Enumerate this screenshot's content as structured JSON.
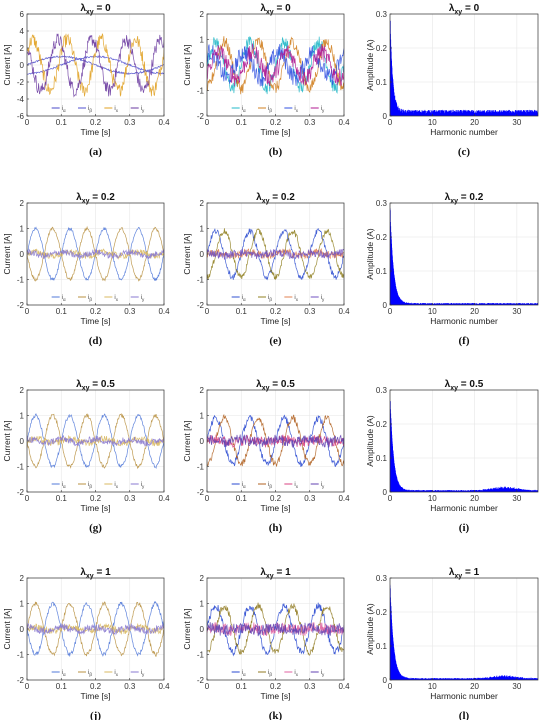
{
  "chart_data": [
    {
      "id": "a",
      "type": "line",
      "title": "λxy = 0",
      "title_main": "λ",
      "title_sub": "xy",
      "title_value": " = 0",
      "caption": "(a)",
      "xlabel": "Time [s]",
      "ylabel": "Current [A]",
      "xlim": [
        0,
        0.4
      ],
      "ylim": [
        -6,
        6
      ],
      "xticks": [
        0,
        0.1,
        0.2,
        0.3,
        0.4
      ],
      "xtick_labels": [
        "0",
        "0.1",
        "0.2",
        "0.3",
        "0.4"
      ],
      "yticks": [
        -6,
        -4,
        -2,
        0,
        2,
        4,
        6
      ],
      "ytick_labels": [
        "-6",
        "-4",
        "-2",
        "0",
        "2",
        "4",
        "6"
      ],
      "grid": true,
      "legend": [
        "iα",
        "iβ",
        "ix",
        "iy"
      ],
      "legend_main": [
        "i",
        "i",
        "i",
        "i"
      ],
      "legend_sub": [
        "α",
        "β",
        "x",
        "y"
      ],
      "legend_placement": "bottom-right",
      "colors": [
        "#4a4ac8",
        "#5050d0",
        "#e0a020",
        "#6a3aa0"
      ],
      "series": [
        {
          "amp": 1,
          "phase": 0,
          "noise": 0.1,
          "freq": 2.5
        },
        {
          "amp": 1,
          "phase": -1.57,
          "noise": 0.1,
          "freq": 2.5
        },
        {
          "amp": 3,
          "phase": 0.5,
          "noise": 0.8,
          "freq": 10
        },
        {
          "amp": 3,
          "phase": 2.2,
          "noise": 0.8,
          "freq": 10
        }
      ]
    },
    {
      "id": "b",
      "type": "line",
      "title": "λxy = 0",
      "title_main": "λ",
      "title_sub": "xy",
      "title_value": " = 0",
      "caption": "(b)",
      "xlabel": "Time [s]",
      "ylabel": "Current [A]",
      "xlim": [
        0,
        0.4
      ],
      "ylim": [
        -2,
        2
      ],
      "xticks": [
        0,
        0.1,
        0.2,
        0.3,
        0.4
      ],
      "xtick_labels": [
        "0",
        "0.1",
        "0.2",
        "0.3",
        "0.4"
      ],
      "yticks": [
        -2,
        -1,
        0,
        1,
        2
      ],
      "ytick_labels": [
        "-2",
        "-1",
        "0",
        "1",
        "2"
      ],
      "grid": true,
      "legend": [
        "iα",
        "iβ",
        "ix",
        "iy"
      ],
      "legend_main": [
        "i",
        "i",
        "i",
        "i"
      ],
      "legend_sub": [
        "α",
        "β",
        "x",
        "y"
      ],
      "legend_placement": "bottom-right",
      "colors": [
        "#20b8c8",
        "#d08020",
        "#3050e0",
        "#b01890"
      ],
      "series": [
        {
          "amp": 0.9,
          "phase": 0,
          "noise": 0.25,
          "freq": 10
        },
        {
          "amp": 0.9,
          "phase": -1.57,
          "noise": 0.25,
          "freq": 10
        },
        {
          "amp": 0.5,
          "phase": 1.0,
          "noise": 0.35,
          "freq": 10
        },
        {
          "amp": 0.5,
          "phase": -0.6,
          "noise": 0.35,
          "freq": 10
        }
      ]
    },
    {
      "id": "c",
      "type": "bar",
      "title": "λxy = 0",
      "title_main": "λ",
      "title_sub": "xy",
      "title_value": " = 0",
      "caption": "(c)",
      "xlabel": "Harmonic number",
      "ylabel": "Amplitude (A)",
      "xlim": [
        0,
        35
      ],
      "ylim": [
        0,
        0.3
      ],
      "xticks": [
        0,
        10,
        20,
        30
      ],
      "xtick_labels": [
        "0",
        "10",
        "20",
        "30"
      ],
      "yticks": [
        0,
        0.1,
        0.2,
        0.3
      ],
      "ytick_labels": [
        "0",
        "0.1",
        "0.2",
        "0.3"
      ],
      "grid": true,
      "colors": [
        "#0000ff"
      ],
      "spectrum": {
        "peak": 0.29,
        "decay": 0.6,
        "floor": 0.012,
        "bump_center": 0,
        "bump_amp": 0
      }
    },
    {
      "id": "d",
      "type": "line",
      "title": "λxy = 0.2",
      "title_main": "λ",
      "title_sub": "xy",
      "title_value": " = 0.2",
      "caption": "(d)",
      "xlabel": "Time [s]",
      "ylabel": "Current [A]",
      "xlim": [
        0,
        0.4
      ],
      "ylim": [
        -2,
        2
      ],
      "xticks": [
        0,
        0.1,
        0.2,
        0.3,
        0.4
      ],
      "xtick_labels": [
        "0",
        "0.1",
        "0.2",
        "0.3",
        "0.4"
      ],
      "yticks": [
        -2,
        -1,
        0,
        1,
        2
      ],
      "ytick_labels": [
        "-2",
        "-1",
        "0",
        "1",
        "2"
      ],
      "grid": true,
      "legend": [
        "iα",
        "iβ",
        "ix",
        "iy"
      ],
      "legend_main": [
        "i",
        "i",
        "i",
        "i"
      ],
      "legend_sub": [
        "α",
        "β",
        "x",
        "y"
      ],
      "legend_placement": "bottom-right",
      "colors": [
        "#5078d8",
        "#b89040",
        "#d8b860",
        "#8a7ad0"
      ],
      "series": [
        {
          "amp": 1,
          "phase": 0,
          "noise": 0.06,
          "freq": 10
        },
        {
          "amp": 1,
          "phase": 3.14,
          "noise": 0.06,
          "freq": 10
        },
        {
          "amp": 0.08,
          "phase": 0,
          "noise": 0.12,
          "freq": 10
        },
        {
          "amp": 0.08,
          "phase": 1.5,
          "noise": 0.12,
          "freq": 10
        }
      ]
    },
    {
      "id": "e",
      "type": "line",
      "title": "λxy = 0.2",
      "title_main": "λ",
      "title_sub": "xy",
      "title_value": " = 0.2",
      "caption": "(e)",
      "xlabel": "Time [s]",
      "ylabel": "Current [A]",
      "xlim": [
        0,
        0.4
      ],
      "ylim": [
        -2,
        2
      ],
      "xticks": [
        0,
        0.1,
        0.2,
        0.3,
        0.4
      ],
      "xtick_labels": [
        "0",
        "0.1",
        "0.2",
        "0.3",
        "0.4"
      ],
      "yticks": [
        -2,
        -1,
        0,
        1,
        2
      ],
      "ytick_labels": [
        "-2",
        "-1",
        "0",
        "1",
        "2"
      ],
      "grid": true,
      "legend": [
        "iα",
        "iβ",
        "ix",
        "iy"
      ],
      "legend_main": [
        "i",
        "i",
        "i",
        "i"
      ],
      "legend_sub": [
        "α",
        "β",
        "x",
        "y"
      ],
      "legend_placement": "bottom-right",
      "colors": [
        "#3050d0",
        "#908020",
        "#e08050",
        "#7050c0"
      ],
      "series": [
        {
          "amp": 0.9,
          "phase": 0,
          "noise": 0.12,
          "freq": 10
        },
        {
          "amp": 0.9,
          "phase": -1.57,
          "noise": 0.12,
          "freq": 10
        },
        {
          "amp": 0.06,
          "phase": 0,
          "noise": 0.15,
          "freq": 10
        },
        {
          "amp": 0.06,
          "phase": 1.5,
          "noise": 0.15,
          "freq": 10
        }
      ]
    },
    {
      "id": "f",
      "type": "bar",
      "title": "λxy = 0.2",
      "title_main": "λ",
      "title_sub": "xy",
      "title_value": " = 0.2",
      "caption": "(f)",
      "xlabel": "Harmonic number",
      "ylabel": "Amplitude (A)",
      "xlim": [
        0,
        35
      ],
      "ylim": [
        0,
        0.3
      ],
      "xticks": [
        0,
        10,
        20,
        30
      ],
      "xtick_labels": [
        "0",
        "10",
        "20",
        "30"
      ],
      "yticks": [
        0,
        0.1,
        0.2,
        0.3
      ],
      "ytick_labels": [
        "0",
        "0.1",
        "0.2",
        "0.3"
      ],
      "grid": true,
      "colors": [
        "#0000ff"
      ],
      "spectrum": {
        "peak": 0.29,
        "decay": 0.8,
        "floor": 0.004,
        "bump_center": 0,
        "bump_amp": 0
      }
    },
    {
      "id": "g",
      "type": "line",
      "title": "λxy = 0.5",
      "title_main": "λ",
      "title_sub": "xy",
      "title_value": " = 0.5",
      "caption": "(g)",
      "xlabel": "Time [s]",
      "ylabel": "Current [A]",
      "xlim": [
        0,
        0.4
      ],
      "ylim": [
        -2,
        2
      ],
      "xticks": [
        0,
        0.1,
        0.2,
        0.3,
        0.4
      ],
      "xtick_labels": [
        "0",
        "0.1",
        "0.2",
        "0.3",
        "0.4"
      ],
      "yticks": [
        -2,
        -1,
        0,
        1,
        2
      ],
      "ytick_labels": [
        "-2",
        "-1",
        "0",
        "1",
        "2"
      ],
      "grid": true,
      "legend": [
        "iα",
        "iβ",
        "ix",
        "iy"
      ],
      "legend_main": [
        "i",
        "i",
        "i",
        "i"
      ],
      "legend_sub": [
        "α",
        "β",
        "x",
        "y"
      ],
      "legend_placement": "bottom-right",
      "colors": [
        "#5078d8",
        "#b89040",
        "#d8b860",
        "#8a7ad0"
      ],
      "series": [
        {
          "amp": 1,
          "phase": 0,
          "noise": 0.07,
          "freq": 10
        },
        {
          "amp": 1,
          "phase": 3.14,
          "noise": 0.07,
          "freq": 10
        },
        {
          "amp": 0.08,
          "phase": 0,
          "noise": 0.13,
          "freq": 10
        },
        {
          "amp": 0.08,
          "phase": 1.5,
          "noise": 0.13,
          "freq": 10
        }
      ]
    },
    {
      "id": "h",
      "type": "line",
      "title": "λxy = 0.5",
      "title_main": "λ",
      "title_sub": "xy",
      "title_value": " = 0.5",
      "caption": "(h)",
      "xlabel": "Time [s]",
      "ylabel": "Current [A]",
      "xlim": [
        0,
        0.4
      ],
      "ylim": [
        -2,
        2
      ],
      "xticks": [
        0,
        0.1,
        0.2,
        0.3,
        0.4
      ],
      "xtick_labels": [
        "0",
        "0.1",
        "0.2",
        "0.3",
        "0.4"
      ],
      "yticks": [
        -2,
        -1,
        0,
        1,
        2
      ],
      "ytick_labels": [
        "-2",
        "-1",
        "0",
        "1",
        "2"
      ],
      "grid": true,
      "legend": [
        "iα",
        "iβ",
        "ix",
        "iy"
      ],
      "legend_main": [
        "i",
        "i",
        "i",
        "i"
      ],
      "legend_sub": [
        "α",
        "β",
        "x",
        "y"
      ],
      "legend_placement": "bottom-right",
      "colors": [
        "#2848d0",
        "#b06020",
        "#d84080",
        "#6040b0"
      ],
      "series": [
        {
          "amp": 0.9,
          "phase": 0,
          "noise": 0.13,
          "freq": 10
        },
        {
          "amp": 0.9,
          "phase": -1.57,
          "noise": 0.13,
          "freq": 10
        },
        {
          "amp": 0.06,
          "phase": 0,
          "noise": 0.2,
          "freq": 10
        },
        {
          "amp": 0.06,
          "phase": 1.5,
          "noise": 0.2,
          "freq": 10
        }
      ]
    },
    {
      "id": "i",
      "type": "bar",
      "title": "λxy = 0.5",
      "title_main": "λ",
      "title_sub": "xy",
      "title_value": " = 0.5",
      "caption": "(i)",
      "xlabel": "Harmonic number",
      "ylabel": "Amplitude (A)",
      "xlim": [
        0,
        35
      ],
      "ylim": [
        0,
        0.3
      ],
      "xticks": [
        0,
        10,
        20,
        30
      ],
      "xtick_labels": [
        "0",
        "10",
        "20",
        "30"
      ],
      "yticks": [
        0,
        0.1,
        0.2,
        0.3
      ],
      "ytick_labels": [
        "0",
        "0.1",
        "0.2",
        "0.3"
      ],
      "grid": true,
      "colors": [
        "#0000ff"
      ],
      "spectrum": {
        "peak": 0.29,
        "decay": 0.8,
        "floor": 0.004,
        "bump_center": 27,
        "bump_amp": 0.008
      }
    },
    {
      "id": "j",
      "type": "line",
      "title": "λxy = 1",
      "title_main": "λ",
      "title_sub": "xy",
      "title_value": " = 1",
      "caption": "(j)",
      "xlabel": "Time [s]",
      "ylabel": "Current [A]",
      "xlim": [
        0,
        0.4
      ],
      "ylim": [
        -2,
        2
      ],
      "xticks": [
        0,
        0.1,
        0.2,
        0.3,
        0.4
      ],
      "xtick_labels": [
        "0",
        "0.1",
        "0.2",
        "0.3",
        "0.4"
      ],
      "yticks": [
        -2,
        -1,
        0,
        1,
        2
      ],
      "ytick_labels": [
        "-2",
        "-1",
        "0",
        "1",
        "2"
      ],
      "grid": true,
      "legend": [
        "iα",
        "iβ",
        "ix",
        "iy"
      ],
      "legend_main": [
        "i",
        "i",
        "i",
        "i"
      ],
      "legend_sub": [
        "α",
        "β",
        "x",
        "y"
      ],
      "legend_placement": "bottom-right",
      "colors": [
        "#5078d8",
        "#b89040",
        "#d8b860",
        "#8a7ad0"
      ],
      "series": [
        {
          "amp": 1,
          "phase": 3.14,
          "noise": 0.08,
          "freq": 10
        },
        {
          "amp": 1,
          "phase": 0,
          "noise": 0.08,
          "freq": 10
        },
        {
          "amp": 0.08,
          "phase": 0,
          "noise": 0.14,
          "freq": 10
        },
        {
          "amp": 0.08,
          "phase": 1.5,
          "noise": 0.14,
          "freq": 10
        }
      ]
    },
    {
      "id": "k",
      "type": "line",
      "title": "λxy = 1",
      "title_main": "λ",
      "title_sub": "xy",
      "title_value": " = 1",
      "caption": "(k)",
      "xlabel": "Time [s]",
      "ylabel": "Current [A]",
      "xlim": [
        0,
        0.4
      ],
      "ylim": [
        -2,
        2
      ],
      "xticks": [
        0,
        0.1,
        0.2,
        0.3,
        0.4
      ],
      "xtick_labels": [
        "0",
        "0.1",
        "0.2",
        "0.3",
        "0.4"
      ],
      "yticks": [
        -2,
        -1,
        0,
        1,
        2
      ],
      "ytick_labels": [
        "-2",
        "-1",
        "0",
        "1",
        "2"
      ],
      "grid": true,
      "legend": [
        "iα",
        "iβ",
        "ix",
        "iy"
      ],
      "legend_main": [
        "i",
        "i",
        "i",
        "i"
      ],
      "legend_sub": [
        "α",
        "β",
        "x",
        "y"
      ],
      "legend_placement": "bottom-right",
      "colors": [
        "#2848d0",
        "#907a20",
        "#e060a0",
        "#6040b0"
      ],
      "series": [
        {
          "amp": 0.9,
          "phase": 0,
          "noise": 0.14,
          "freq": 10
        },
        {
          "amp": 0.9,
          "phase": -1.57,
          "noise": 0.14,
          "freq": 10
        },
        {
          "amp": 0.06,
          "phase": 0,
          "noise": 0.22,
          "freq": 10
        },
        {
          "amp": 0.06,
          "phase": 1.5,
          "noise": 0.22,
          "freq": 10
        }
      ]
    },
    {
      "id": "l",
      "type": "bar",
      "title": "λxy = 1",
      "title_main": "λ",
      "title_sub": "xy",
      "title_value": " = 1",
      "caption": "(l)",
      "xlabel": "Harmonic number",
      "ylabel": "Amplitude (A)",
      "xlim": [
        0,
        35
      ],
      "ylim": [
        0,
        0.3
      ],
      "xticks": [
        0,
        10,
        20,
        30
      ],
      "xtick_labels": [
        "0",
        "10",
        "20",
        "30"
      ],
      "yticks": [
        0,
        0.1,
        0.2,
        0.3
      ],
      "ytick_labels": [
        "0",
        "0.1",
        "0.2",
        "0.3"
      ],
      "grid": true,
      "colors": [
        "#0000ff"
      ],
      "spectrum": {
        "peak": 0.29,
        "decay": 0.8,
        "floor": 0.004,
        "bump_center": 27,
        "bump_amp": 0.006
      }
    }
  ]
}
